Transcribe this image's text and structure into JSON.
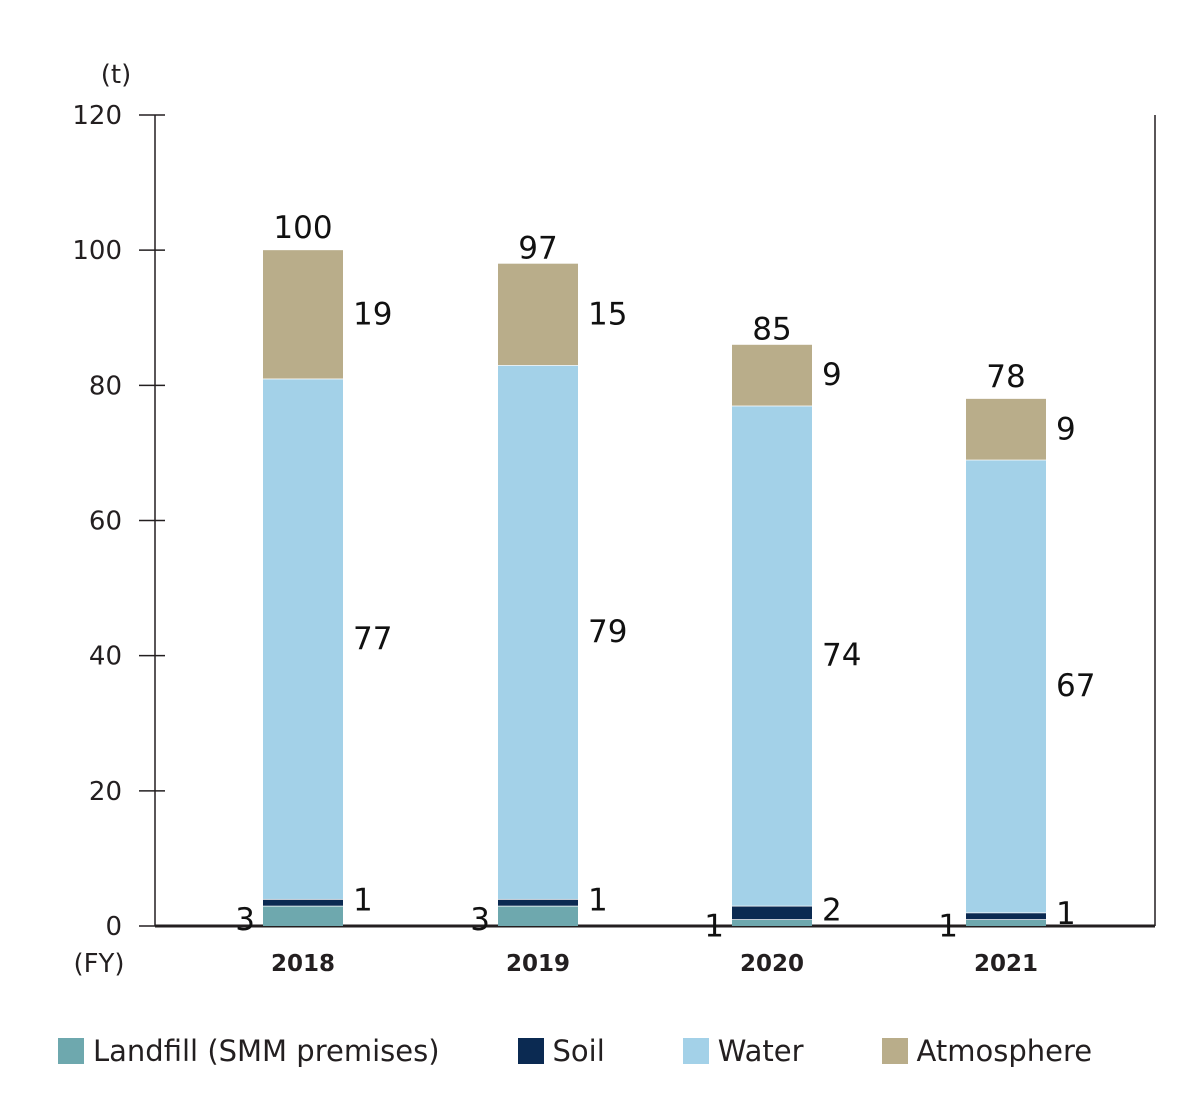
{
  "chart_data": {
    "type": "bar",
    "stacked": true,
    "categories": [
      "2018",
      "2019",
      "2020",
      "2021"
    ],
    "series": [
      {
        "name": "Landfill (SMM premises)",
        "values": [
          3,
          3,
          1,
          1
        ],
        "color": "#6ea8ae"
      },
      {
        "name": "Soil",
        "values": [
          1,
          1,
          2,
          1
        ],
        "color": "#0b2a52"
      },
      {
        "name": "Water",
        "values": [
          77,
          79,
          74,
          67
        ],
        "color": "#a3d1e8"
      },
      {
        "name": "Atmosphere",
        "values": [
          19,
          15,
          9,
          9
        ],
        "color": "#b9ad8a"
      }
    ],
    "totals": [
      100,
      97,
      85,
      78
    ],
    "ylim": [
      0,
      120
    ],
    "yticks": [
      0,
      20,
      40,
      60,
      80,
      100,
      120
    ],
    "y_unit_label": "(t)",
    "x_unit_label": "(FY)",
    "legend_position": "bottom"
  }
}
